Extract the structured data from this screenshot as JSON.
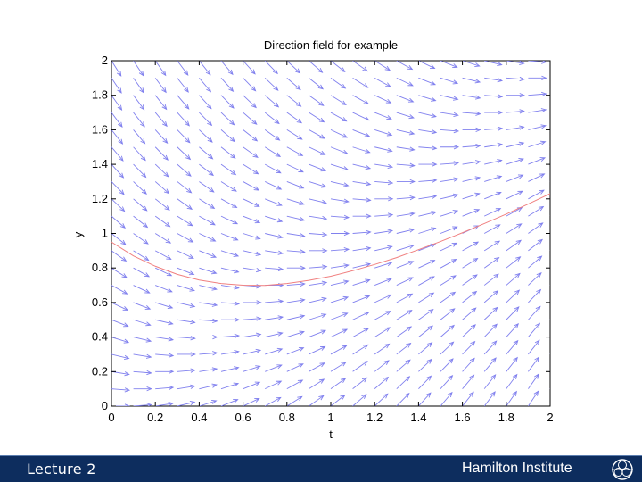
{
  "chart_data": {
    "type": "direction-field",
    "title": "Direction field for example",
    "xlabel": "t",
    "ylabel": "y",
    "xlim": [
      0,
      2
    ],
    "ylim": [
      0,
      2
    ],
    "xticks": [
      "0",
      "0.2",
      "0.4",
      "0.6",
      "0.8",
      "1",
      "1.2",
      "1.4",
      "1.6",
      "1.8",
      "2"
    ],
    "yticks": [
      "0",
      "0.2",
      "0.4",
      "0.6",
      "0.8",
      "1",
      "1.2",
      "1.4",
      "1.6",
      "1.8",
      "2"
    ],
    "xtick_values": [
      0,
      0.2,
      0.4,
      0.6,
      0.8,
      1,
      1.2,
      1.4,
      1.6,
      1.8,
      2
    ],
    "ytick_values": [
      0,
      0.2,
      0.4,
      0.6,
      0.8,
      1,
      1.2,
      1.4,
      1.6,
      1.8,
      2
    ],
    "field": {
      "equation_slope": "t - y",
      "t_values": [
        0,
        0.1,
        0.2,
        0.3,
        0.4,
        0.5,
        0.6,
        0.7,
        0.8,
        0.9,
        1.0,
        1.1,
        1.2,
        1.3,
        1.4,
        1.5,
        1.6,
        1.7,
        1.8,
        1.9,
        2.0
      ],
      "y_values": [
        0,
        0.1,
        0.2,
        0.3,
        0.4,
        0.5,
        0.6,
        0.7,
        0.8,
        0.9,
        1.0,
        1.1,
        1.2,
        1.3,
        1.4,
        1.5,
        1.6,
        1.7,
        1.8,
        1.9,
        2.0
      ],
      "color": "#8080ee"
    },
    "solution_curve": {
      "color": "#f08080",
      "points": [
        [
          0,
          0.95
        ],
        [
          0.1,
          0.87
        ],
        [
          0.2,
          0.81
        ],
        [
          0.3,
          0.763
        ],
        [
          0.4,
          0.73
        ],
        [
          0.5,
          0.71
        ],
        [
          0.6,
          0.7
        ],
        [
          0.7,
          0.699
        ],
        [
          0.8,
          0.71
        ],
        [
          0.9,
          0.728
        ],
        [
          1.0,
          0.752
        ],
        [
          1.1,
          0.784
        ],
        [
          1.2,
          0.82
        ],
        [
          1.3,
          0.86
        ],
        [
          1.4,
          0.906
        ],
        [
          1.5,
          0.953
        ],
        [
          1.6,
          1.004
        ],
        [
          1.7,
          1.057
        ],
        [
          1.8,
          1.112
        ],
        [
          1.9,
          1.17
        ],
        [
          2.0,
          1.23
        ]
      ]
    },
    "grid": false
  },
  "footer": {
    "left_text": "Lecture 2",
    "right_text": "Hamilton Institute",
    "logo_icon": "hamilton-institute-logo-icon",
    "background": "#0d2d5e"
  }
}
